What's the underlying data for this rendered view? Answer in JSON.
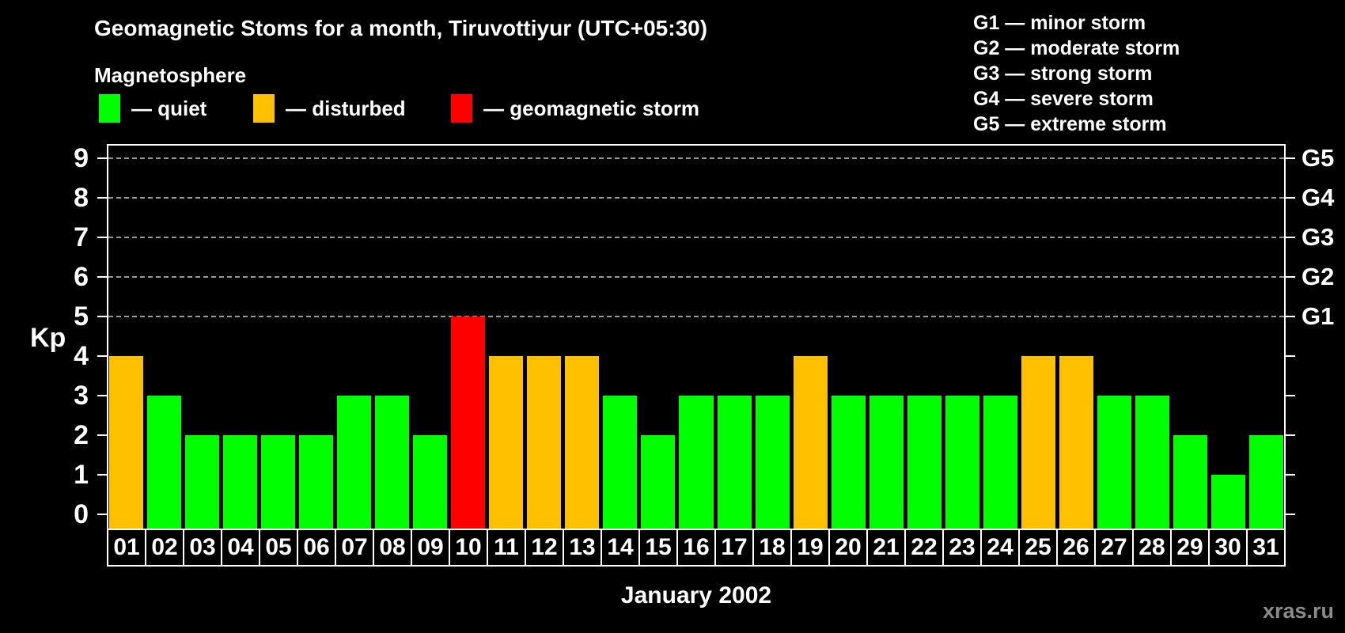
{
  "title": "Geomagnetic Stoms for a month, Tiruvottiyur (UTC+05:30)",
  "magnetosphere_legend": {
    "title": "Magnetosphere",
    "items": [
      {
        "name": "quiet",
        "label": "— quiet",
        "color": "#00FF00"
      },
      {
        "name": "disturbed",
        "label": "— disturbed",
        "color": "#FFC000"
      },
      {
        "name": "storm",
        "label": "— geomagnetic storm",
        "color": "#FF0000"
      }
    ]
  },
  "g_scale_legend": [
    "G1 — minor storm",
    "G2 — moderate storm",
    "G3 — strong storm",
    "G4 — severe storm",
    "G5 — extreme storm"
  ],
  "watermark": "xras.ru",
  "chart_data": {
    "type": "bar",
    "title": "Geomagnetic Stoms for a month, Tiruvottiyur (UTC+05:30)",
    "xlabel": "January 2002",
    "ylabel": "Kp",
    "ylim": [
      0,
      9
    ],
    "yticks": [
      0,
      1,
      2,
      3,
      4,
      5,
      6,
      7,
      8,
      9
    ],
    "grid": "horizontal dashed gridlines at Kp 5,6,7,8,9",
    "legend_position": "top-left",
    "categories": [
      "01",
      "02",
      "03",
      "04",
      "05",
      "06",
      "07",
      "08",
      "09",
      "10",
      "11",
      "12",
      "13",
      "14",
      "15",
      "16",
      "17",
      "18",
      "19",
      "20",
      "21",
      "22",
      "23",
      "24",
      "25",
      "26",
      "27",
      "28",
      "29",
      "30",
      "31"
    ],
    "values": [
      4,
      3,
      2,
      2,
      2,
      2,
      3,
      3,
      2,
      5,
      4,
      4,
      4,
      3,
      2,
      3,
      3,
      3,
      4,
      3,
      3,
      3,
      3,
      3,
      4,
      4,
      3,
      3,
      2,
      1,
      2
    ],
    "statuses": [
      "disturbed",
      "quiet",
      "quiet",
      "quiet",
      "quiet",
      "quiet",
      "quiet",
      "quiet",
      "quiet",
      "storm",
      "disturbed",
      "disturbed",
      "disturbed",
      "quiet",
      "quiet",
      "quiet",
      "quiet",
      "quiet",
      "disturbed",
      "quiet",
      "quiet",
      "quiet",
      "quiet",
      "quiet",
      "disturbed",
      "disturbed",
      "quiet",
      "quiet",
      "quiet",
      "quiet",
      "quiet"
    ],
    "status_colors": {
      "quiet": "#00FF00",
      "disturbed": "#FFC000",
      "storm": "#FF0000"
    },
    "right_axis_labels": [
      {
        "label": "G1",
        "kp": 5
      },
      {
        "label": "G2",
        "kp": 6
      },
      {
        "label": "G3",
        "kp": 7
      },
      {
        "label": "G4",
        "kp": 8
      },
      {
        "label": "G5",
        "kp": 9
      }
    ]
  }
}
